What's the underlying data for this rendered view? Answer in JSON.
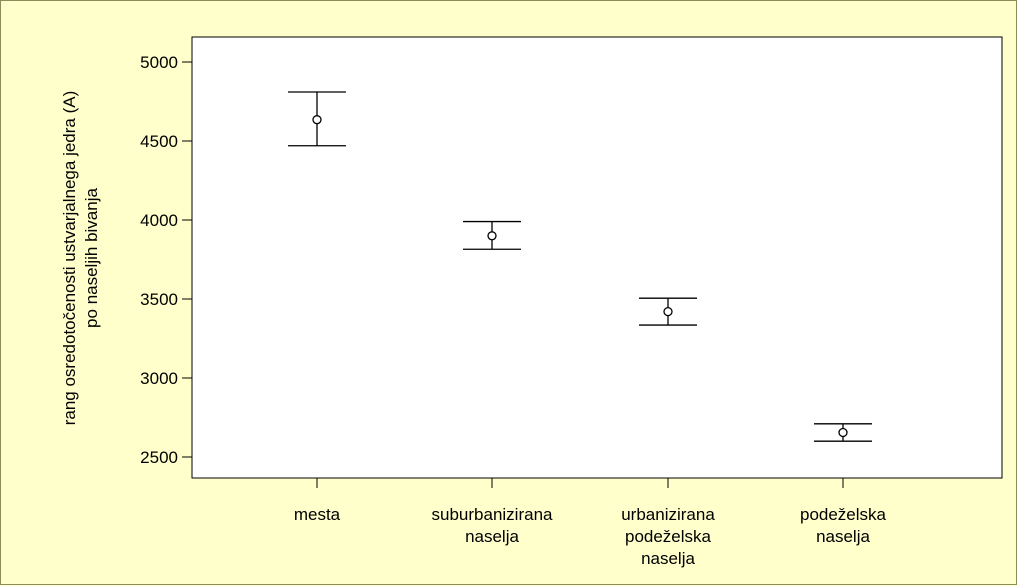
{
  "chart_data": {
    "type": "errorbar",
    "title": "",
    "ylabel_lines": [
      "rang osredotočenosti ustvarjalnega jedra (A)",
      "po naseljih bivanja"
    ],
    "xlabel": "",
    "ylim": [
      2350,
      5150
    ],
    "yticks": [
      2500,
      3000,
      3500,
      4000,
      4500,
      5000
    ],
    "ytick_labels": [
      "2500",
      "3000",
      "3500",
      "4000",
      "4500",
      "5000"
    ],
    "categories": [
      {
        "label_lines": [
          "mesta"
        ],
        "mean": 4635,
        "lower": 4470,
        "upper": 4810
      },
      {
        "label_lines": [
          "suburbanizirana",
          "naselja"
        ],
        "mean": 3900,
        "lower": 3815,
        "upper": 3990
      },
      {
        "label_lines": [
          "urbanizirana",
          "podeželska",
          "naselja"
        ],
        "mean": 3420,
        "lower": 3335,
        "upper": 3505
      },
      {
        "label_lines": [
          "podeželska",
          "naselja"
        ],
        "mean": 2655,
        "lower": 2600,
        "upper": 2710
      }
    ],
    "grid": false,
    "colors": {
      "background": "#ffffcc",
      "plot_area": "#ffffff",
      "ink": "#000000"
    }
  }
}
